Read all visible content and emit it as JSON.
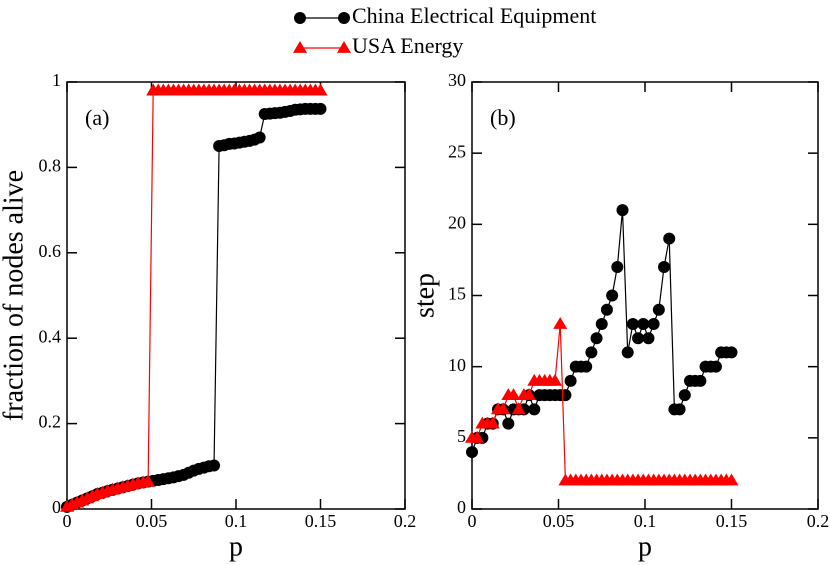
{
  "chart_data": [
    {
      "type": "line",
      "annotation": "(a)",
      "xlabel": "p",
      "ylabel": "fraction of nodes alive",
      "xlim": [
        0,
        0.2
      ],
      "xticks": [
        0,
        0.05,
        0.1,
        0.15,
        0.2
      ],
      "ylim": [
        0,
        1
      ],
      "yticks": [
        0,
        0.2,
        0.4,
        0.6,
        0.8,
        1
      ],
      "x": [
        0,
        0.003,
        0.006,
        0.009,
        0.012,
        0.015,
        0.018,
        0.021,
        0.024,
        0.027,
        0.03,
        0.033,
        0.036,
        0.039,
        0.042,
        0.045,
        0.048,
        0.051,
        0.054,
        0.057,
        0.06,
        0.063,
        0.066,
        0.069,
        0.072,
        0.075,
        0.078,
        0.081,
        0.084,
        0.087,
        0.09,
        0.093,
        0.096,
        0.099,
        0.102,
        0.105,
        0.108,
        0.111,
        0.114,
        0.117,
        0.12,
        0.123,
        0.126,
        0.129,
        0.132,
        0.135,
        0.138,
        0.141,
        0.144,
        0.147,
        0.15
      ],
      "series": [
        {
          "name": "China Electrical Equipment",
          "color": "#000000",
          "marker": "circle",
          "values": [
            0.005,
            0.01,
            0.015,
            0.02,
            0.025,
            0.03,
            0.035,
            0.038,
            0.042,
            0.045,
            0.048,
            0.051,
            0.054,
            0.057,
            0.06,
            0.062,
            0.064,
            0.066,
            0.068,
            0.07,
            0.072,
            0.074,
            0.077,
            0.08,
            0.085,
            0.09,
            0.094,
            0.097,
            0.1,
            0.102,
            0.85,
            0.852,
            0.855,
            0.856,
            0.858,
            0.86,
            0.862,
            0.865,
            0.87,
            0.925,
            0.926,
            0.927,
            0.928,
            0.93,
            0.932,
            0.935,
            0.936,
            0.937,
            0.937,
            0.937,
            0.937
          ]
        },
        {
          "name": "USA Energy",
          "color": "#ff0000",
          "marker": "triangle",
          "values": [
            0.005,
            0.01,
            0.015,
            0.02,
            0.025,
            0.03,
            0.035,
            0.038,
            0.042,
            0.045,
            0.048,
            0.051,
            0.054,
            0.057,
            0.06,
            0.062,
            0.064,
            0.98,
            0.98,
            0.98,
            0.98,
            0.98,
            0.98,
            0.98,
            0.98,
            0.98,
            0.98,
            0.98,
            0.98,
            0.98,
            0.98,
            0.98,
            0.98,
            0.98,
            0.98,
            0.98,
            0.98,
            0.98,
            0.98,
            0.98,
            0.98,
            0.98,
            0.98,
            0.98,
            0.98,
            0.98,
            0.98,
            0.98,
            0.98,
            0.98,
            0.98
          ]
        }
      ]
    },
    {
      "type": "line",
      "annotation": "(b)",
      "xlabel": "p",
      "ylabel": "step",
      "xlim": [
        0,
        0.2
      ],
      "xticks": [
        0,
        0.05,
        0.1,
        0.15,
        0.2
      ],
      "ylim": [
        0,
        30
      ],
      "yticks": [
        0,
        5,
        10,
        15,
        20,
        25,
        30
      ],
      "x": [
        0,
        0.003,
        0.006,
        0.009,
        0.012,
        0.015,
        0.018,
        0.021,
        0.024,
        0.027,
        0.03,
        0.033,
        0.036,
        0.039,
        0.042,
        0.045,
        0.048,
        0.051,
        0.054,
        0.057,
        0.06,
        0.063,
        0.066,
        0.069,
        0.072,
        0.075,
        0.078,
        0.081,
        0.084,
        0.087,
        0.09,
        0.093,
        0.096,
        0.099,
        0.102,
        0.105,
        0.108,
        0.111,
        0.114,
        0.117,
        0.12,
        0.123,
        0.126,
        0.129,
        0.132,
        0.135,
        0.138,
        0.141,
        0.144,
        0.147,
        0.15
      ],
      "series": [
        {
          "color": "#000000",
          "marker": "circle",
          "values": [
            4,
            5,
            5,
            6,
            6,
            7,
            7,
            6,
            7,
            7,
            7,
            8,
            7,
            8,
            8,
            8,
            8,
            8,
            8,
            9,
            10,
            10,
            10,
            11,
            12,
            13,
            14,
            15,
            17,
            21,
            11,
            13,
            12,
            13,
            12,
            13,
            14,
            17,
            19,
            7,
            7,
            8,
            9,
            9,
            9,
            10,
            10,
            10,
            11,
            11,
            11
          ]
        },
        {
          "color": "#ff0000",
          "marker": "triangle",
          "values": [
            5,
            5,
            6,
            6,
            6,
            7,
            7,
            8,
            8,
            7,
            8,
            8,
            9,
            9,
            9,
            9,
            9,
            13,
            2,
            2,
            2,
            2,
            2,
            2,
            2,
            2,
            2,
            2,
            2,
            2,
            2,
            2,
            2,
            2,
            2,
            2,
            2,
            2,
            2,
            2,
            2,
            2,
            2,
            2,
            2,
            2,
            2,
            2,
            2,
            2,
            2
          ]
        }
      ]
    }
  ]
}
